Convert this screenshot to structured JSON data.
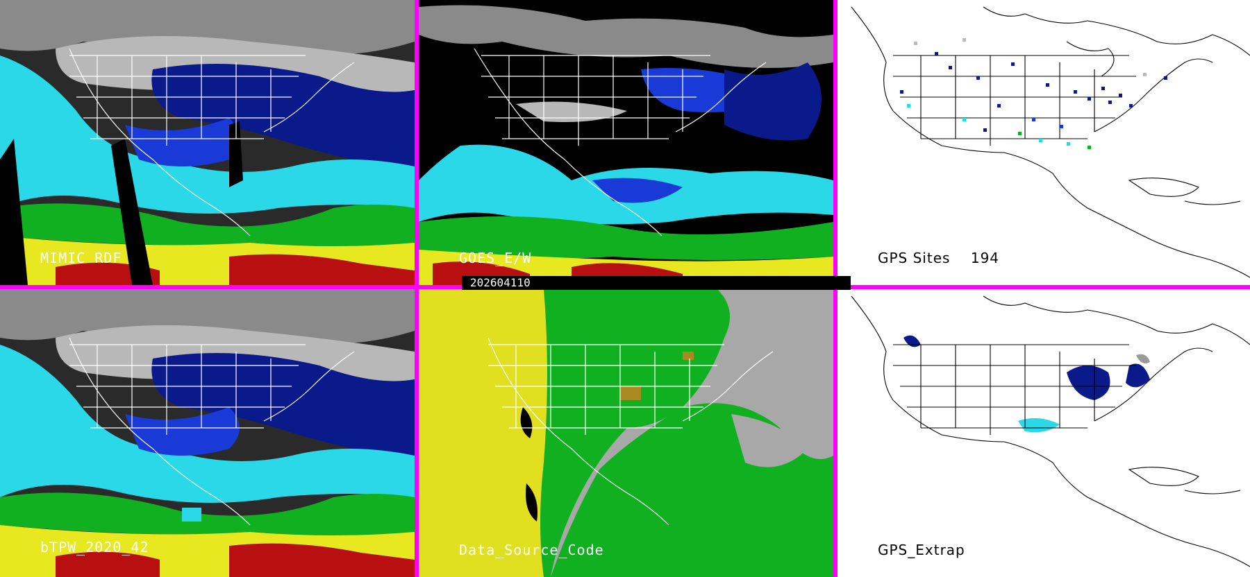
{
  "timestamp": "202604110",
  "panels": [
    {
      "id": "p0",
      "label": "MIMIC RDF",
      "style": "tpw"
    },
    {
      "id": "p1",
      "label": "GOES_E/W",
      "style": "goes"
    },
    {
      "id": "p2",
      "label": "GPS Sites    194",
      "style": "gps"
    },
    {
      "id": "p3",
      "label": "bTPW_2020_42",
      "style": "tpw"
    },
    {
      "id": "p4",
      "label": "Data_Source_Code",
      "style": "source"
    },
    {
      "id": "p5",
      "label": "GPS_Extrap",
      "style": "extrap"
    }
  ],
  "colors": {
    "divider": "#ff00ff",
    "tpw_scale": [
      "#ffffff",
      "#9a9a9a",
      "#0a1a8a",
      "#1a3ad8",
      "#2ad8e8",
      "#10b020",
      "#e8e820",
      "#b81010"
    ]
  }
}
